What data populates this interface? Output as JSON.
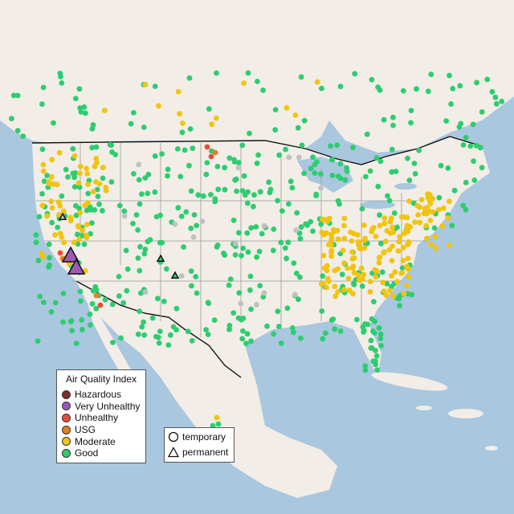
{
  "map": {
    "colors": {
      "water": "#a9c7de",
      "land": "#f2ede6",
      "land_alt": "#e8e2d8",
      "border": "#111111",
      "state_lines": "#9a9a9a",
      "lakes": "#a9c7de"
    }
  },
  "legend": {
    "title": "Air Quality Index",
    "items": [
      {
        "label": "Hazardous",
        "color": "#7e2b2b"
      },
      {
        "label": "Very Unhealthy",
        "color": "#9b59b6"
      },
      {
        "label": "Unhealthy",
        "color": "#e74c3c"
      },
      {
        "label": "USG",
        "color": "#e67e22"
      },
      {
        "label": "Moderate",
        "color": "#f1c40f"
      },
      {
        "label": "Good",
        "color": "#2ecc71"
      }
    ]
  },
  "type_legend": {
    "items": [
      {
        "label": "temporary",
        "shape": "circle"
      },
      {
        "label": "permanent",
        "shape": "triangle"
      }
    ]
  }
}
